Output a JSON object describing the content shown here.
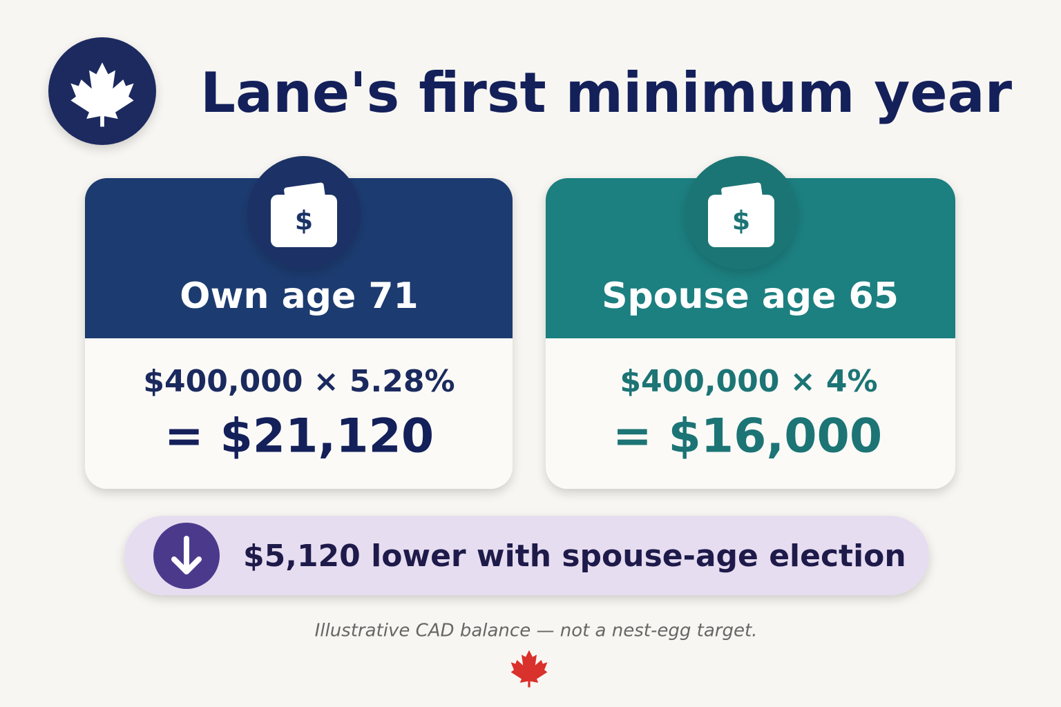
{
  "header": {
    "title": "Lane's first minimum year"
  },
  "cards": [
    {
      "icon": "$",
      "heading": "Own age 71",
      "formula": "$400,000 × 5.28%",
      "result": "= $21,120"
    },
    {
      "icon": "$",
      "heading": "Spouse age 65",
      "formula": "$400,000 × 4%",
      "result": "= $16,000"
    }
  ],
  "banner": {
    "text": "$5,120 lower with spouse-age election"
  },
  "footnote": "Illustrative CAD balance — not a nest-egg target."
}
